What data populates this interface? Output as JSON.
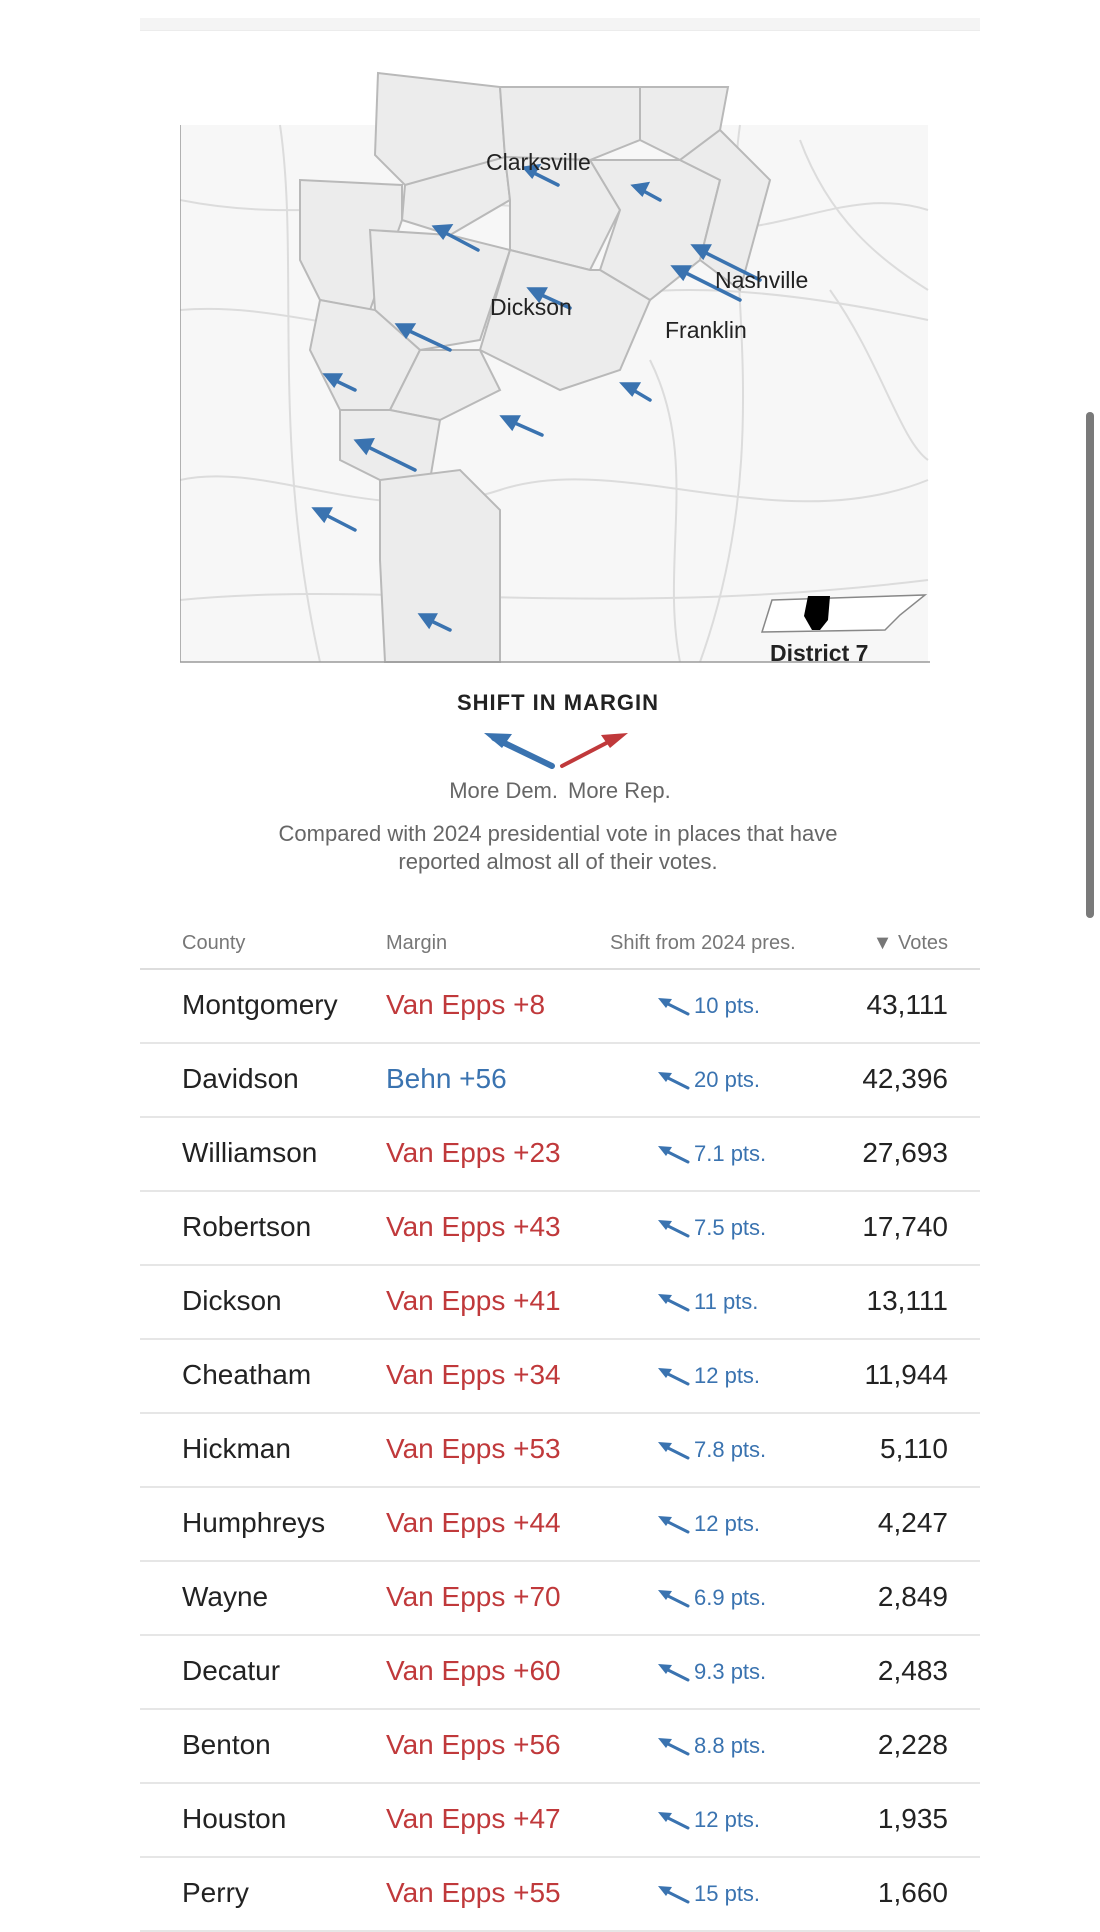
{
  "map": {
    "cities": [
      "Clarksville",
      "Nashville",
      "Dickson",
      "Franklin"
    ],
    "inset_label": "District 7",
    "colors": {
      "dem": "#3a73b0",
      "rep": "#c0393b",
      "county_fill": "#ececec",
      "district_fill": "#000000"
    }
  },
  "legend": {
    "title": "SHIFT IN MARGIN",
    "dem_label": "More Dem.",
    "rep_label": "More Rep.",
    "note": "Compared with 2024 presidential vote in places that have reported almost all of their votes."
  },
  "table": {
    "headers": {
      "county": "County",
      "margin": "Margin",
      "shift": "Shift from 2024 pres.",
      "votes": "▼ Votes"
    },
    "rows": [
      {
        "county": "Montgomery",
        "margin": "Van Epps +8",
        "party": "rep",
        "shift": "10 pts.",
        "votes": "43,111"
      },
      {
        "county": "Davidson",
        "margin": "Behn +56",
        "party": "dem",
        "shift": "20 pts.",
        "votes": "42,396"
      },
      {
        "county": "Williamson",
        "margin": "Van Epps +23",
        "party": "rep",
        "shift": "7.1 pts.",
        "votes": "27,693"
      },
      {
        "county": "Robertson",
        "margin": "Van Epps +43",
        "party": "rep",
        "shift": "7.5 pts.",
        "votes": "17,740"
      },
      {
        "county": "Dickson",
        "margin": "Van Epps +41",
        "party": "rep",
        "shift": "11 pts.",
        "votes": "13,111"
      },
      {
        "county": "Cheatham",
        "margin": "Van Epps +34",
        "party": "rep",
        "shift": "12 pts.",
        "votes": "11,944"
      },
      {
        "county": "Hickman",
        "margin": "Van Epps +53",
        "party": "rep",
        "shift": "7.8 pts.",
        "votes": "5,110"
      },
      {
        "county": "Humphreys",
        "margin": "Van Epps +44",
        "party": "rep",
        "shift": "12 pts.",
        "votes": "4,247"
      },
      {
        "county": "Wayne",
        "margin": "Van Epps +70",
        "party": "rep",
        "shift": "6.9 pts.",
        "votes": "2,849"
      },
      {
        "county": "Decatur",
        "margin": "Van Epps +60",
        "party": "rep",
        "shift": "9.3 pts.",
        "votes": "2,483"
      },
      {
        "county": "Benton",
        "margin": "Van Epps +56",
        "party": "rep",
        "shift": "8.8 pts.",
        "votes": "2,228"
      },
      {
        "county": "Houston",
        "margin": "Van Epps +47",
        "party": "rep",
        "shift": "12 pts.",
        "votes": "1,935"
      },
      {
        "county": "Perry",
        "margin": "Van Epps +55",
        "party": "rep",
        "shift": "15 pts.",
        "votes": "1,660"
      }
    ]
  }
}
